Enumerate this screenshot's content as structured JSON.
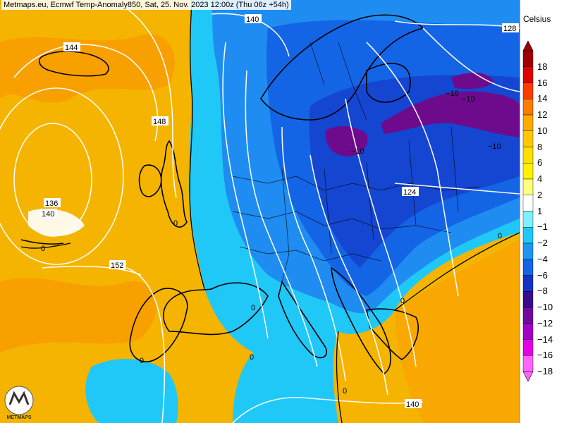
{
  "title": "Metmaps.eu, Ecmwf Temp-Anomaly850, Sat, 25. Nov. 2023 12:00z (Thu 06z +54h)",
  "legend": {
    "unit": "Celsius",
    "ticks": [
      "18",
      "16",
      "14",
      "12",
      "10",
      "8",
      "6",
      "4",
      "2",
      "1",
      "−1",
      "−2",
      "−4",
      "−6",
      "−8",
      "−10",
      "−12",
      "−14",
      "−16",
      "−18"
    ],
    "colors": [
      "#a00000",
      "#e00000",
      "#ff3a00",
      "#ff7a00",
      "#ffaa00",
      "#ffc800",
      "#ffe000",
      "#fff200",
      "#ffff80",
      "#ffffff",
      "#80f0ff",
      "#20c8f8",
      "#1e96f0",
      "#1464e6",
      "#1432c8",
      "#3a0a8c",
      "#6e0aa0",
      "#a000c8",
      "#e600e6",
      "#ff64ff"
    ]
  },
  "contour_labels": [
    "140",
    "144",
    "148",
    "136",
    "140",
    "152",
    "128",
    "124",
    "0",
    "0",
    "0",
    "0",
    "0",
    "0",
    "0",
    "0",
    "140",
    "−10",
    "−10",
    "−10",
    "−10"
  ],
  "logo_text": "METMAPS",
  "palette": {
    "warm": "#f5b400",
    "cold_light": "#1eb4f0",
    "cold": "#1e78e6",
    "cold_deep": "#1446d2",
    "purple": "#6e0a8c"
  }
}
